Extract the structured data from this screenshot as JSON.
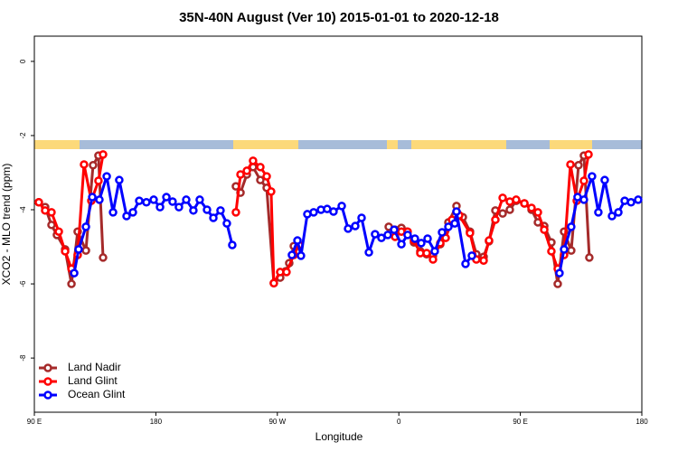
{
  "chart_data": {
    "type": "line",
    "title": "35N-40N August (Ver 10)   2015-01-01 to 2020-12-18",
    "x_label": "Longitude",
    "y_label": "XCO2 - MLO trend (ppm)",
    "xlim": [
      90,
      540
    ],
    "xticks": [
      {
        "value": 90,
        "label": "90 E"
      },
      {
        "value": 180,
        "label": "180"
      },
      {
        "value": 270,
        "label": "90 W"
      },
      {
        "value": 360,
        "label": "0"
      },
      {
        "value": 450,
        "label": "90 E"
      },
      {
        "value": 540,
        "label": "180"
      }
    ],
    "ylim": [
      -9.46,
      0.68
    ],
    "yticks": [
      0,
      -2,
      -4,
      -6,
      -8
    ],
    "legend": "bottom-left",
    "series": [
      {
        "name": "Land Nadir",
        "color": "#a52a2a",
        "x": [
          93.3,
          98.0,
          102.7,
          106.7,
          112.8,
          117.5,
          122.1,
          128.2,
          133.5,
          137.5,
          140.9,
          null,
          239.3,
          242.7,
          247.4,
          252.0,
          257.4,
          262.1,
          267.4,
          272.1,
          276.1,
          278.8,
          282.2,
          null,
          352.5,
          357.2,
          361.9,
          365.9,
          371.2,
          375.9,
          380.6,
          385.3,
          390.7,
          396.7,
          402.7,
          407.4,
          412.7,
          417.4,
          422.8,
          426.8,
          431.5,
          436.9,
          442.2,
          446.9,
          453.0,
          458.3,
          463.0,
          467.7,
          473.0,
          477.7,
          482.4,
          487.7,
          493.1,
          497.1,
          501.1
        ],
        "values": [
          -3.8,
          -3.93,
          -4.41,
          -4.68,
          -5.07,
          -6.0,
          -4.59,
          -5.1,
          -2.8,
          -2.54,
          -5.29,
          null,
          -3.37,
          -3.54,
          -3.05,
          -2.85,
          -3.2,
          -3.41,
          -5.98,
          -5.83,
          -5.66,
          -5.44,
          -4.98,
          null,
          -4.46,
          -4.54,
          -4.49,
          -4.59,
          -4.88,
          -5.12,
          -5.2,
          -5.24,
          -4.93,
          -4.34,
          -3.9,
          -4.2,
          -4.59,
          -5.2,
          -5.27,
          -4.85,
          -4.02,
          -4.1,
          -4.0,
          -3.76,
          -3.83,
          -4.0,
          -4.34,
          -4.44,
          -4.88,
          -6.0,
          -4.59,
          -5.1,
          -2.8,
          -2.54,
          -5.29
        ]
      },
      {
        "name": "Land Glint",
        "color": "#ff0000",
        "x": [
          93.3,
          98.0,
          102.7,
          108.1,
          112.8,
          117.5,
          122.1,
          126.8,
          132.2,
          137.5,
          140.9,
          null,
          239.3,
          242.7,
          247.4,
          252.0,
          257.4,
          262.1,
          265.4,
          267.4,
          272.1,
          276.8,
          282.2,
          286.2,
          null,
          357.2,
          361.9,
          366.5,
          371.2,
          375.9,
          380.6,
          385.3,
          390.7,
          394.7,
          399.4,
          404.7,
          412.7,
          417.4,
          422.8,
          426.8,
          431.5,
          436.9,
          442.2,
          446.9,
          453.0,
          458.3,
          463.0,
          467.7,
          473.0,
          477.7,
          482.4,
          487.1,
          491.8,
          497.1,
          500.5
        ],
        "values": [
          -3.8,
          -4.02,
          -4.07,
          -4.59,
          -5.12,
          -5.59,
          -5.22,
          -2.78,
          -3.76,
          -3.22,
          -2.51,
          null,
          -4.07,
          -3.05,
          -2.95,
          -2.68,
          -2.85,
          -3.1,
          -3.51,
          -5.98,
          -5.68,
          -5.68,
          -5.22,
          -4.95,
          null,
          -4.73,
          -4.59,
          -4.59,
          -4.83,
          -5.17,
          -5.17,
          -5.34,
          -4.9,
          -4.76,
          -4.27,
          -4.15,
          -4.63,
          -5.34,
          -5.37,
          -4.83,
          -4.27,
          -3.68,
          -3.78,
          -3.73,
          -3.83,
          -3.95,
          -4.07,
          -4.54,
          -5.12,
          -5.59,
          -5.22,
          -2.78,
          -3.76,
          -3.22,
          -2.51
        ]
      },
      {
        "name": "Ocean Glint",
        "color": "#0000ff",
        "x": [
          119.5,
          122.8,
          128.2,
          132.9,
          138.2,
          143.6,
          148.3,
          152.9,
          158.3,
          163.0,
          167.7,
          173.0,
          178.4,
          183.1,
          187.8,
          192.4,
          197.1,
          202.5,
          207.8,
          212.5,
          217.9,
          222.6,
          227.9,
          232.6,
          236.6,
          null,
          280.8,
          284.9,
          287.5,
          292.2,
          296.9,
          302.3,
          306.9,
          311.6,
          317.7,
          322.4,
          327.7,
          332.4,
          337.8,
          342.4,
          347.1,
          351.8,
          356.5,
          361.9,
          366.5,
          371.9,
          376.6,
          381.3,
          386.6,
          392.0,
          396.7,
          401.4,
          402.7,
          409.4,
          414.1,
          null,
          479.0,
          482.4,
          487.7,
          492.4,
          497.1,
          503.1,
          507.8,
          512.5,
          517.9,
          522.6,
          527.3,
          532.0,
          537.3
        ],
        "values": [
          -5.71,
          -5.07,
          -4.46,
          -3.66,
          -3.73,
          -3.1,
          -4.07,
          -3.2,
          -4.17,
          -4.07,
          -3.76,
          -3.8,
          -3.73,
          -3.93,
          -3.66,
          -3.78,
          -3.93,
          -3.73,
          -4.02,
          -3.73,
          -4.0,
          -4.22,
          -4.02,
          -4.37,
          -4.95,
          null,
          -5.22,
          -4.83,
          -5.24,
          -4.12,
          -4.07,
          -4.0,
          -3.98,
          -4.05,
          -3.9,
          -4.51,
          -4.44,
          -4.22,
          -5.15,
          -4.66,
          -4.76,
          -4.68,
          -4.54,
          -4.93,
          -4.68,
          -4.78,
          -4.9,
          -4.78,
          -5.12,
          -4.61,
          -4.46,
          -4.37,
          -4.05,
          -5.46,
          -5.24,
          null,
          -5.71,
          -5.07,
          -4.46,
          -3.66,
          -3.73,
          -3.1,
          -4.07,
          -3.2,
          -4.17,
          -4.07,
          -3.76,
          -3.8,
          -3.73
        ]
      }
    ]
  }
}
